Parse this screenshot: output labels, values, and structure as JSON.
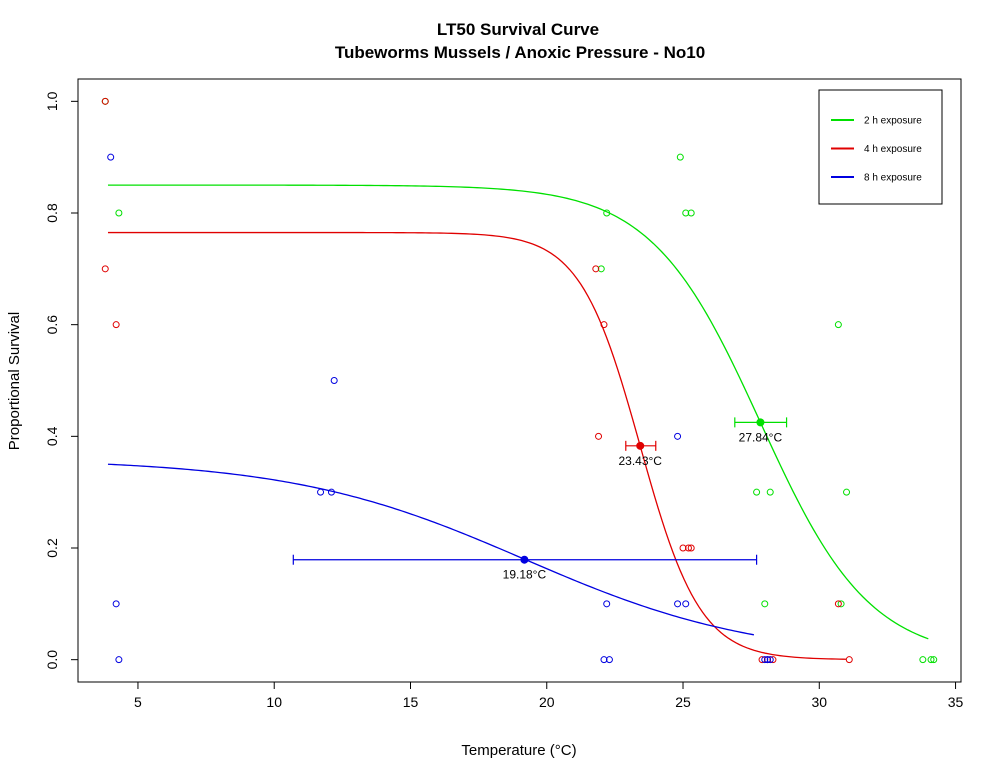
{
  "chart_data": {
    "type": "scatter",
    "title": "LT50 Survival Curve",
    "subtitle": "Tubeworms Mussels / Anoxic Pressure - No10",
    "xlabel": "Temperature (°C)",
    "ylabel": "Proportional Survival",
    "xlim": [
      2.8,
      35.2
    ],
    "ylim": [
      -0.04,
      1.04
    ],
    "xticks": [
      5,
      10,
      15,
      20,
      25,
      30,
      35
    ],
    "yticks": [
      0.0,
      0.2,
      0.4,
      0.6,
      0.8,
      1.0
    ],
    "xtick_labels": [
      "5",
      "10",
      "15",
      "20",
      "25",
      "30",
      "35"
    ],
    "ytick_labels": [
      "0.0",
      "0.2",
      "0.4",
      "0.6",
      "0.8",
      "1.0"
    ],
    "legend_position": "top-right",
    "grid": false,
    "series": [
      {
        "name": "2 h exposure",
        "color": "#00e000",
        "points": [
          [
            3.8,
            1.0
          ],
          [
            4.3,
            0.8
          ],
          [
            22.0,
            0.7
          ],
          [
            22.2,
            0.8
          ],
          [
            24.9,
            0.9
          ],
          [
            25.1,
            0.8
          ],
          [
            25.3,
            0.8
          ],
          [
            27.7,
            0.3
          ],
          [
            28.0,
            0.1
          ],
          [
            28.2,
            0.3
          ],
          [
            30.7,
            0.6
          ],
          [
            30.8,
            0.1
          ],
          [
            31.0,
            0.3
          ],
          [
            33.8,
            0.0
          ],
          [
            34.1,
            0.0
          ],
          [
            34.2,
            0.0
          ]
        ],
        "curve": {
          "upper": 0.85,
          "lower": 0.0,
          "mid": 27.84,
          "scale": 2.0,
          "x_range": [
            3.9,
            34.0
          ]
        },
        "lt50": {
          "x": 27.84,
          "y": 0.425,
          "ci": [
            26.9,
            28.8
          ],
          "label": "27.84°C"
        }
      },
      {
        "name": "4 h exposure",
        "color": "#e00000",
        "points": [
          [
            3.8,
            1.0
          ],
          [
            3.8,
            0.7
          ],
          [
            4.2,
            0.6
          ],
          [
            21.8,
            0.7
          ],
          [
            21.9,
            0.4
          ],
          [
            22.1,
            0.6
          ],
          [
            25.0,
            0.2
          ],
          [
            25.2,
            0.2
          ],
          [
            25.3,
            0.2
          ],
          [
            27.9,
            0.0
          ],
          [
            28.1,
            0.0
          ],
          [
            28.3,
            0.0
          ],
          [
            30.7,
            0.1
          ],
          [
            31.1,
            0.0
          ]
        ],
        "curve": {
          "upper": 0.765,
          "lower": 0.0,
          "mid": 23.43,
          "scale": 1.1,
          "x_range": [
            3.9,
            31.0
          ]
        },
        "lt50": {
          "x": 23.43,
          "y": 0.383,
          "ci": [
            22.9,
            24.0
          ],
          "label": "23.43°C"
        }
      },
      {
        "name": "8 h exposure",
        "color": "#0000e0",
        "points": [
          [
            4.0,
            0.9
          ],
          [
            4.2,
            0.1
          ],
          [
            4.3,
            0.0
          ],
          [
            11.7,
            0.3
          ],
          [
            12.1,
            0.3
          ],
          [
            12.2,
            0.5
          ],
          [
            22.1,
            0.0
          ],
          [
            22.2,
            0.1
          ],
          [
            22.3,
            0.0
          ],
          [
            24.8,
            0.1
          ],
          [
            24.8,
            0.4
          ],
          [
            25.1,
            0.1
          ],
          [
            28.0,
            0.0
          ],
          [
            28.1,
            0.0
          ],
          [
            28.2,
            0.0
          ]
        ],
        "curve": {
          "upper": 0.36,
          "lower": 0.0,
          "mid": 19.18,
          "scale": 4.3,
          "x_range": [
            3.9,
            27.6
          ]
        },
        "lt50": {
          "x": 19.18,
          "y": 0.179,
          "ci": [
            10.7,
            27.7
          ],
          "label": "19.18°C"
        }
      }
    ]
  }
}
